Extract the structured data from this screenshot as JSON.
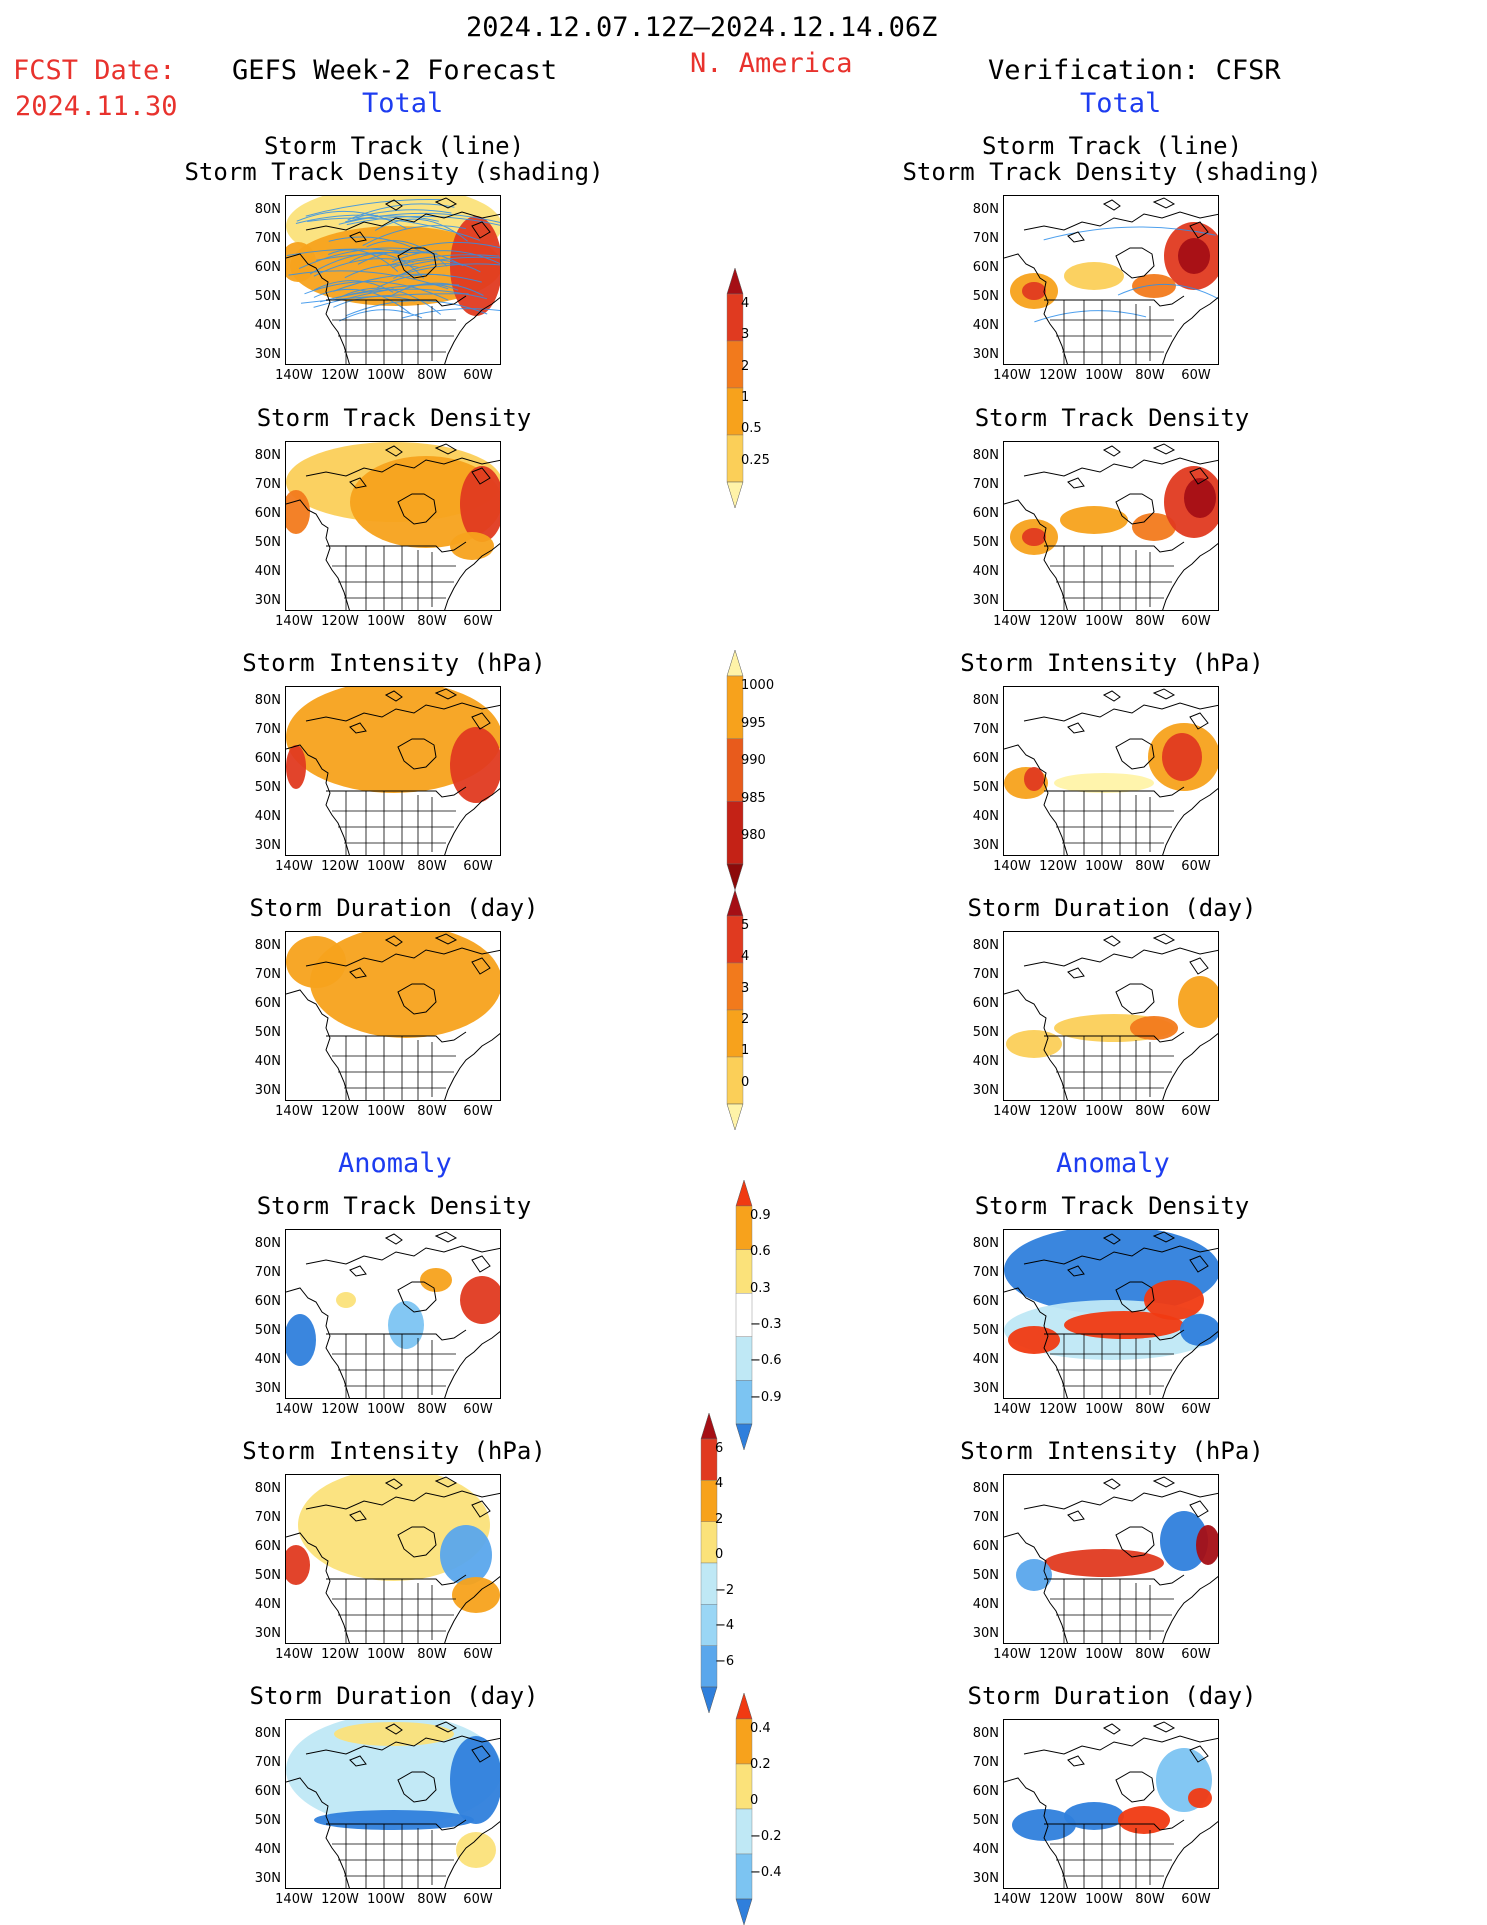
{
  "header": {
    "period": "2024.12.07.12Z–2024.12.14.06Z",
    "region": "N. America",
    "fcst_label": "FCST Date:",
    "fcst_date": "2024.11.30",
    "left_title": "GEFS Week-2 Forecast",
    "right_title": "Verification: CFSR",
    "total_label": "Total",
    "anomaly_label": "Anomaly"
  },
  "axes": {
    "lat_ticks": [
      "80N",
      "70N",
      "60N",
      "50N",
      "40N",
      "30N"
    ],
    "lon_ticks": [
      "140W",
      "120W",
      "100W",
      "80W",
      "60W"
    ]
  },
  "rows": [
    {
      "title_line1": "Storm Track (line)",
      "title_line2": "Storm Track Density (shading)"
    },
    {
      "title_line1": "Storm Track Density"
    },
    {
      "title_line1": "Storm Intensity (hPa)"
    },
    {
      "title_line1": "Storm Duration (day)"
    },
    {
      "title_line1": "Storm Track Density"
    },
    {
      "title_line1": "Storm Intensity (hPa)"
    },
    {
      "title_line1": "Storm Duration (day)"
    }
  ],
  "colorbars": [
    {
      "labels": [
        "4",
        "3",
        "2",
        "1",
        "0.5",
        "0.25"
      ],
      "colors": [
        "#a50f15",
        "#e03a20",
        "#f27a1c",
        "#f7a21c",
        "#fbcf58",
        "#fff3a8"
      ]
    },
    {
      "labels": [
        "1000",
        "995",
        "990",
        "985",
        "980"
      ],
      "colors": [
        "#fff3a8",
        "#f7a21c",
        "#e85b1c",
        "#c42216",
        "#8c0a0a"
      ]
    },
    {
      "labels": [
        "5",
        "4",
        "3",
        "2",
        "1",
        "0"
      ],
      "colors": [
        "#a50f15",
        "#e03a20",
        "#f27a1c",
        "#f7a21c",
        "#fbcf58",
        "#fff3a8"
      ]
    },
    {
      "labels": [
        "0.9",
        "0.6",
        "0.3",
        "−0.3",
        "−0.6",
        "−0.9"
      ],
      "colors": [
        "#f03a12",
        "#f7a21c",
        "#fbe27a",
        "#ffffff",
        "#bfe8f5",
        "#7cc4f2",
        "#2f7fdc"
      ]
    },
    {
      "labels": [
        "6",
        "4",
        "2",
        "0",
        "−2",
        "−4",
        "−6"
      ],
      "colors": [
        "#a50f15",
        "#e03a20",
        "#f7a21c",
        "#fbe27a",
        "#bfe8f5",
        "#9ad6f5",
        "#5aa7ec",
        "#2f7fdc"
      ]
    },
    {
      "labels": [
        "0.4",
        "0.2",
        "0",
        "−0.2",
        "−0.4"
      ],
      "colors": [
        "#f03a12",
        "#f7a21c",
        "#fbe27a",
        "#bfe8f5",
        "#7cc4f2",
        "#2f7fdc"
      ]
    }
  ]
}
